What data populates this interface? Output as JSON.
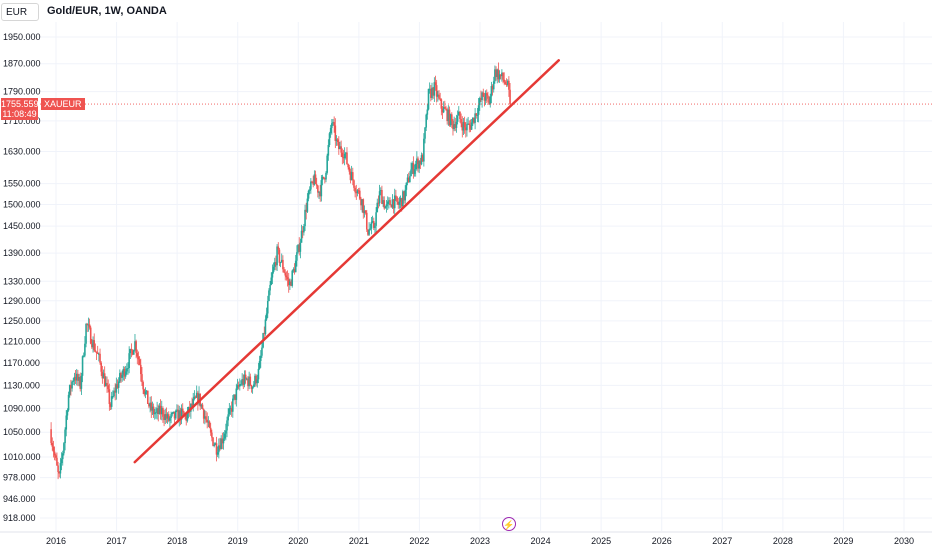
{
  "header": {
    "currency": "EUR",
    "title": "Gold/EUR, 1W, OANDA"
  },
  "price_tag": {
    "price": "1755.559",
    "countdown": "11:08:49",
    "symbol": "XAUEUR"
  },
  "colors": {
    "up": "#26a69a",
    "down": "#ef5350",
    "trendline": "#e53935",
    "grid": "#f0f3fa",
    "axis_text": "#131722",
    "marker": "#9c27b0"
  },
  "chart_data": {
    "type": "candlestick",
    "title": "Gold/EUR, 1W, OANDA",
    "y_scale": "log",
    "y_ticks": [
      918,
      946,
      978,
      1010,
      1050,
      1090,
      1130,
      1170,
      1210,
      1250,
      1290,
      1330,
      1390,
      1450,
      1500,
      1550,
      1630,
      1710,
      1790,
      1870,
      1950
    ],
    "y_tick_labels": [
      "918.000",
      "946.000",
      "978.000",
      "1010.000",
      "1050.000",
      "1090.000",
      "1130.000",
      "1170.000",
      "1210.000",
      "1250.000",
      "1290.000",
      "1330.000",
      "1390.000",
      "1450.000",
      "1500.000",
      "1550.000",
      "1630.000",
      "1710.000",
      "1790.000",
      "1870.000",
      "1950.000"
    ],
    "ylim": [
      900,
      2000
    ],
    "x_ticks": [
      "2016",
      "2017",
      "2018",
      "2019",
      "2020",
      "2021",
      "2022",
      "2023",
      "2024",
      "2025",
      "2026",
      "2027",
      "2028",
      "2029",
      "2030"
    ],
    "xlim": [
      2015.85,
      2030.45
    ],
    "grid": true,
    "current_price": 1755.559,
    "series_points": [
      [
        2015.9,
        1055
      ],
      [
        2015.98,
        1010
      ],
      [
        2016.05,
        975
      ],
      [
        2016.12,
        1025
      ],
      [
        2016.2,
        1110
      ],
      [
        2016.3,
        1150
      ],
      [
        2016.4,
        1130
      ],
      [
        2016.5,
        1245
      ],
      [
        2016.6,
        1210
      ],
      [
        2016.7,
        1180
      ],
      [
        2016.8,
        1140
      ],
      [
        2016.9,
        1095
      ],
      [
        2017.0,
        1130
      ],
      [
        2017.1,
        1150
      ],
      [
        2017.2,
        1175
      ],
      [
        2017.3,
        1210
      ],
      [
        2017.38,
        1170
      ],
      [
        2017.45,
        1125
      ],
      [
        2017.55,
        1090
      ],
      [
        2017.65,
        1080
      ],
      [
        2017.75,
        1085
      ],
      [
        2017.85,
        1070
      ],
      [
        2017.95,
        1075
      ],
      [
        2018.05,
        1080
      ],
      [
        2018.15,
        1075
      ],
      [
        2018.25,
        1095
      ],
      [
        2018.35,
        1110
      ],
      [
        2018.45,
        1080
      ],
      [
        2018.55,
        1045
      ],
      [
        2018.65,
        1025
      ],
      [
        2018.75,
        1040
      ],
      [
        2018.85,
        1075
      ],
      [
        2018.95,
        1110
      ],
      [
        2019.05,
        1135
      ],
      [
        2019.15,
        1140
      ],
      [
        2019.25,
        1130
      ],
      [
        2019.35,
        1155
      ],
      [
        2019.45,
        1240
      ],
      [
        2019.55,
        1330
      ],
      [
        2019.65,
        1390
      ],
      [
        2019.75,
        1360
      ],
      [
        2019.85,
        1320
      ],
      [
        2019.95,
        1365
      ],
      [
        2020.05,
        1430
      ],
      [
        2020.15,
        1510
      ],
      [
        2020.25,
        1560
      ],
      [
        2020.35,
        1530
      ],
      [
        2020.45,
        1580
      ],
      [
        2020.55,
        1710
      ],
      [
        2020.65,
        1640
      ],
      [
        2020.75,
        1630
      ],
      [
        2020.85,
        1580
      ],
      [
        2020.95,
        1540
      ],
      [
        2021.05,
        1510
      ],
      [
        2021.15,
        1440
      ],
      [
        2021.25,
        1450
      ],
      [
        2021.35,
        1530
      ],
      [
        2021.45,
        1490
      ],
      [
        2021.55,
        1510
      ],
      [
        2021.65,
        1500
      ],
      [
        2021.75,
        1520
      ],
      [
        2021.85,
        1580
      ],
      [
        2021.95,
        1600
      ],
      [
        2022.05,
        1610
      ],
      [
        2022.15,
        1780
      ],
      [
        2022.25,
        1800
      ],
      [
        2022.35,
        1750
      ],
      [
        2022.45,
        1730
      ],
      [
        2022.55,
        1700
      ],
      [
        2022.65,
        1720
      ],
      [
        2022.75,
        1690
      ],
      [
        2022.85,
        1700
      ],
      [
        2022.95,
        1740
      ],
      [
        2023.05,
        1780
      ],
      [
        2023.15,
        1760
      ],
      [
        2023.25,
        1850
      ],
      [
        2023.35,
        1830
      ],
      [
        2023.45,
        1810
      ],
      [
        2023.5,
        1755.559
      ]
    ],
    "annotations": [
      {
        "type": "trendline",
        "from": [
          2017.3,
          1002
        ],
        "to": [
          2024.3,
          1880
        ]
      },
      {
        "type": "horizontal-line",
        "y": 1755.559,
        "style": "dotted"
      }
    ]
  }
}
